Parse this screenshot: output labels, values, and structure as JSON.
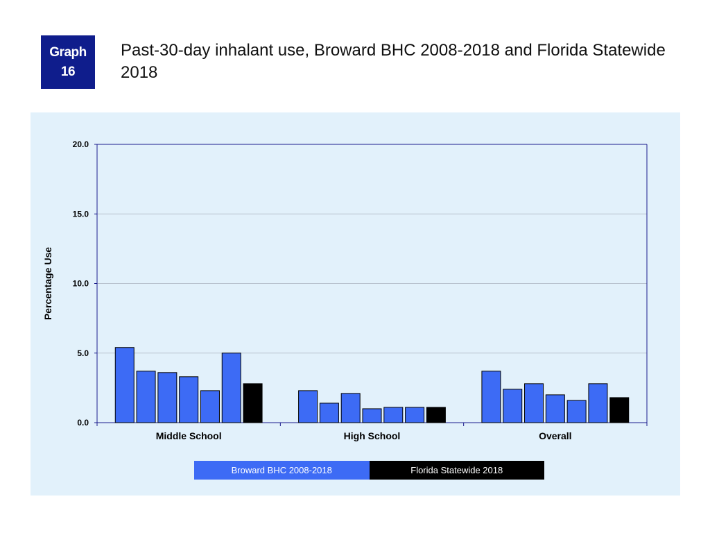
{
  "badge": {
    "line1": "Graph",
    "line2": "16"
  },
  "title": "Past-30-day inhalant use, Broward BHC 2008-2018 and Florida Statewide 2018",
  "colors": {
    "broward": "#3d6bf5",
    "florida": "#000000",
    "panel": "#e2f1fb",
    "axis": "#1a1a8c",
    "grid": "#b9c3cf"
  },
  "legend": {
    "broward": "Broward BHC 2008-2018",
    "florida": "Florida Statewide 2018"
  },
  "chart_data": {
    "type": "bar",
    "title": "Past-30-day inhalant use, Broward BHC 2008-2018 and Florida Statewide 2018",
    "xlabel": "",
    "ylabel": "Percentage Use",
    "ylim": [
      0,
      20
    ],
    "yticks": [
      "0.0",
      "5.0",
      "10.0",
      "15.0",
      "20.0"
    ],
    "grid": true,
    "legend_position": "bottom",
    "categories": [
      "Middle School",
      "High School",
      "Overall"
    ],
    "groups": [
      {
        "category": "Middle School",
        "broward": [
          5.4,
          3.7,
          3.6,
          3.3,
          2.3,
          5.0
        ],
        "florida": 2.8
      },
      {
        "category": "High School",
        "broward": [
          2.3,
          1.4,
          2.1,
          1.0,
          1.1,
          1.1
        ],
        "florida": 1.1
      },
      {
        "category": "Overall",
        "broward": [
          3.7,
          2.4,
          2.8,
          2.0,
          1.6,
          2.8
        ],
        "florida": 1.8
      }
    ]
  }
}
